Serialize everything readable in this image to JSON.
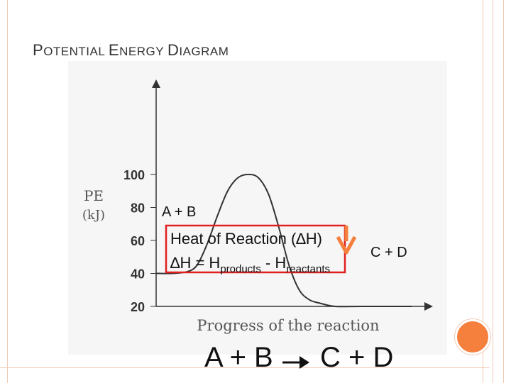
{
  "slide": {
    "title_first_cap": "P",
    "title_rest1": "OTENTIAL ",
    "title_second_cap": "E",
    "title_rest2": "NERGY ",
    "title_third_cap": "D",
    "title_rest3": "IAGRAM",
    "equation_left": "A + B",
    "equation_right": "C + D",
    "accent_color": "#f5803e",
    "box_color": "#e02020"
  },
  "chart_data": {
    "type": "line",
    "ylabel_line1": "PE",
    "ylabel_line2": "(kJ)",
    "xlabel": "Progress of the reaction",
    "ylim": [
      0,
      100
    ],
    "yticks": [
      20,
      40,
      60,
      80,
      100
    ],
    "ytick_labels": [
      "20",
      "40",
      "60",
      "80",
      "100"
    ],
    "series": [
      {
        "x": [
          0,
          0.06,
          0.12,
          0.16,
          0.2,
          0.24,
          0.28,
          0.32,
          0.36,
          0.4,
          0.44,
          0.48,
          0.52,
          0.56,
          0.6,
          0.64,
          0.7,
          0.8,
          0.9,
          1.0
        ],
        "y": [
          40,
          40,
          41,
          45,
          58,
          75,
          90,
          98,
          100,
          98,
          88,
          68,
          45,
          30,
          24,
          22,
          20,
          20,
          20,
          20
        ]
      }
    ],
    "annotations": {
      "reactants": "A + B",
      "products": "C + D",
      "heat_line1": "Heat of Reaction (∆H)",
      "dh_prefix": "∆H = H",
      "dh_sub1": "products",
      "dh_middle": " - H",
      "dh_sub2": "reactants"
    }
  }
}
